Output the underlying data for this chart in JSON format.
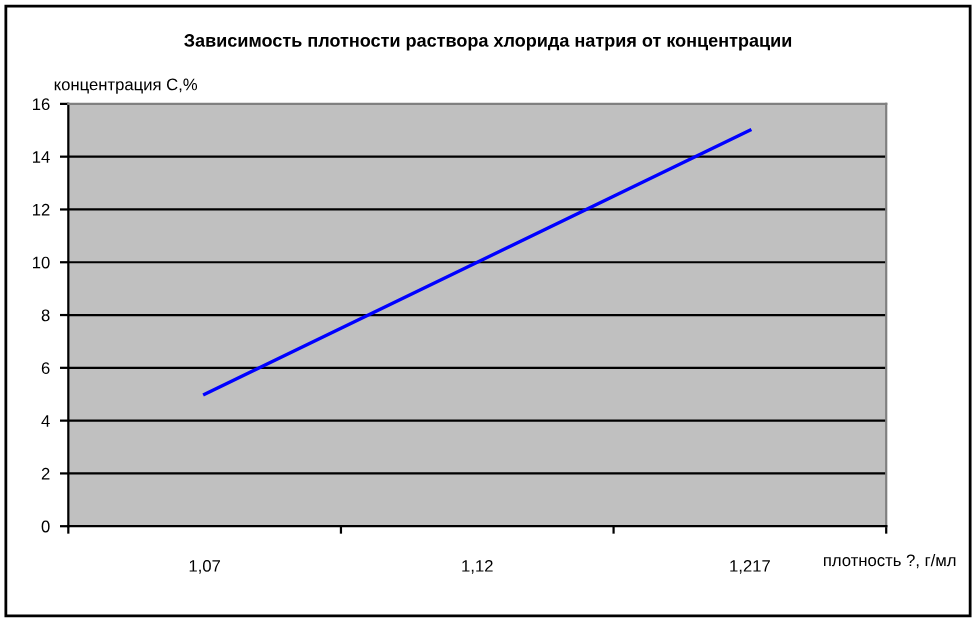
{
  "chart_data": {
    "type": "line",
    "title": "Зависимость плотности раствора хлорида натрия от концентрации",
    "xlabel": "плотность ?, г/мл",
    "ylabel": "концентрация С,%",
    "categories": [
      "1,07",
      "1,12",
      "1,217"
    ],
    "series": [
      {
        "color": "#0000ff",
        "values": [
          5,
          10,
          15
        ]
      }
    ],
    "ylim": [
      0,
      16
    ],
    "yticks": [
      0,
      2,
      4,
      6,
      8,
      10,
      12,
      14,
      16
    ],
    "grid": "y",
    "legend": false,
    "marker": "none",
    "line_style": "solid"
  }
}
